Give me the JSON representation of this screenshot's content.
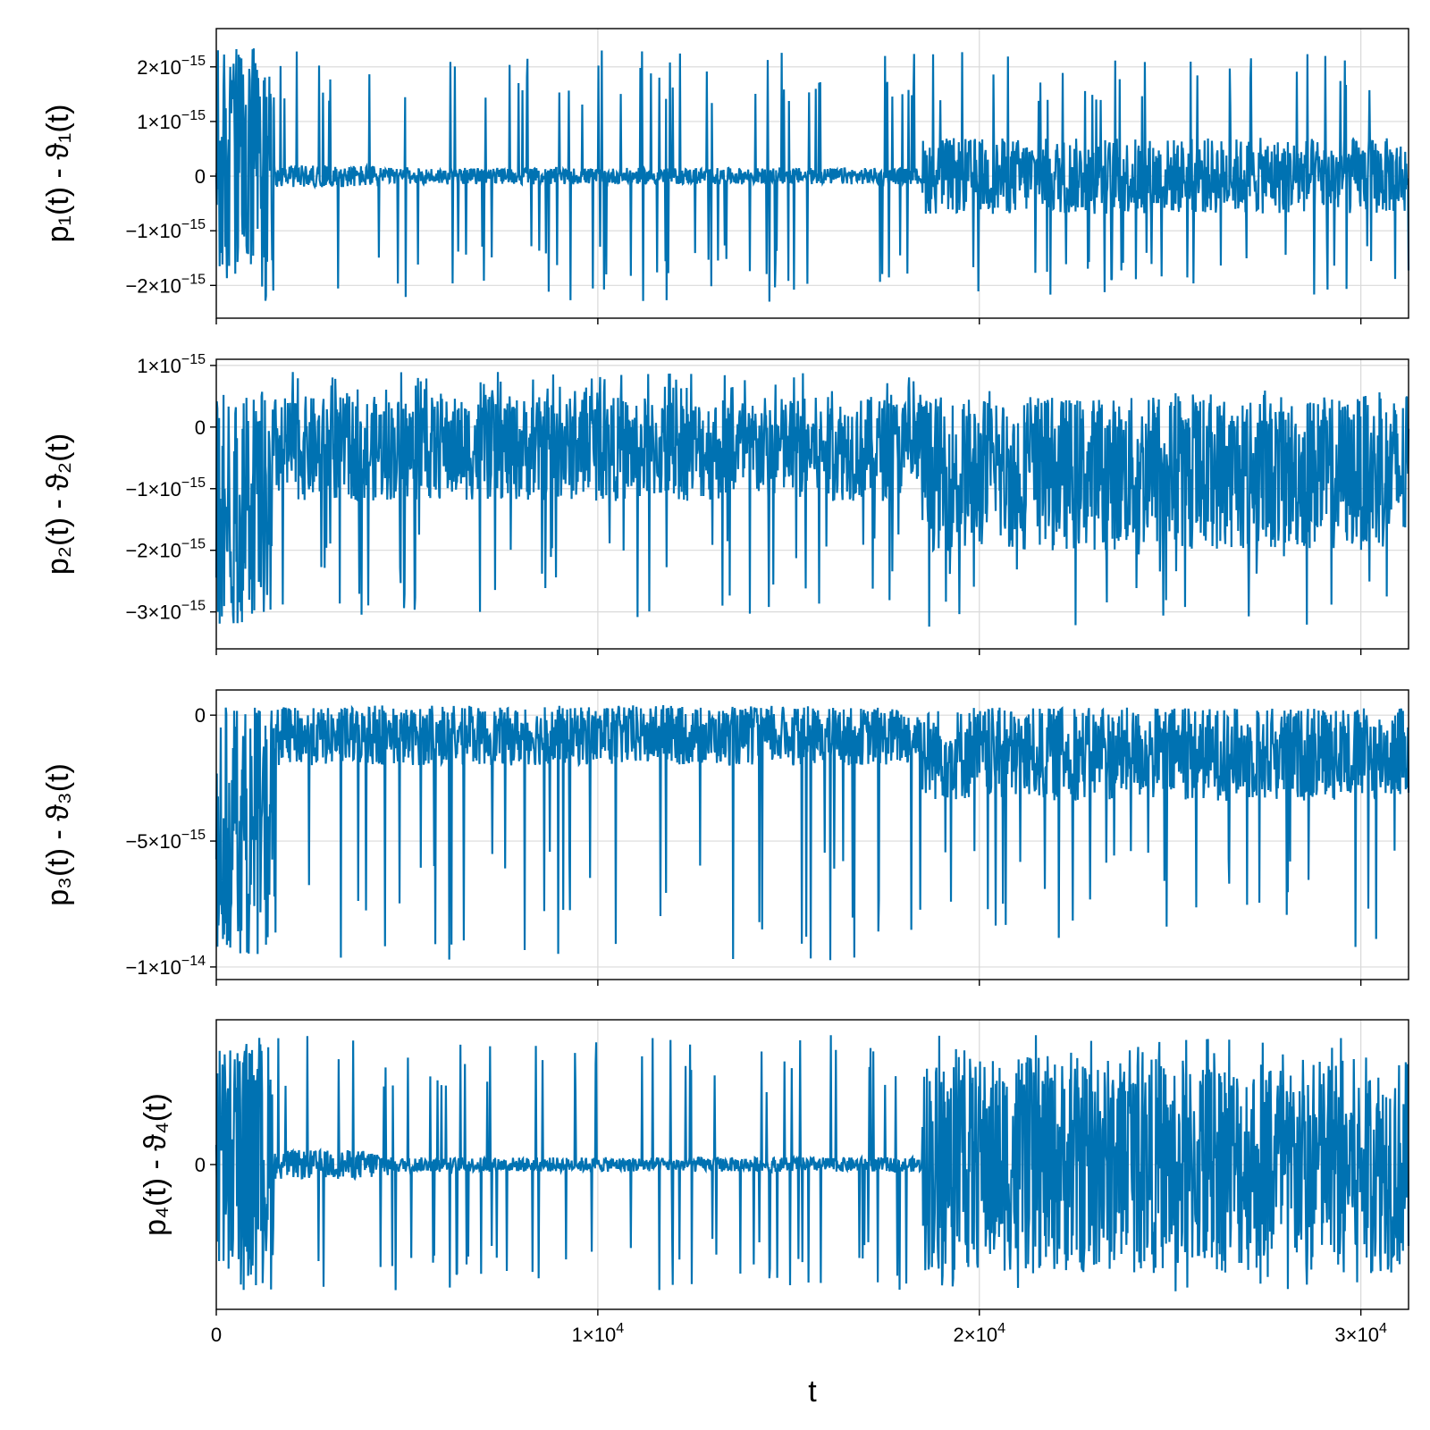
{
  "chart_data": [
    {
      "type": "line",
      "ylabel": "p₁(t) - ϑ₁(t)",
      "xlabel": "",
      "xlim": [
        0,
        31250
      ],
      "ylim": [
        -2.6e-15,
        2.7e-15
      ],
      "x_ticks": [
        {
          "value": 0,
          "label": ""
        },
        {
          "value": 10000,
          "label": ""
        },
        {
          "value": 20000,
          "label": ""
        },
        {
          "value": 30000,
          "label": ""
        }
      ],
      "y_ticks": [
        {
          "value": 2e-15,
          "mant": "2×10",
          "exp": "−15"
        },
        {
          "value": 1e-15,
          "mant": "1×10",
          "exp": "−15"
        },
        {
          "value": 0,
          "mant": "0",
          "exp": ""
        },
        {
          "value": -1e-15,
          "mant": "−1×10",
          "exp": "−15"
        },
        {
          "value": -2e-15,
          "mant": "−2×10",
          "exp": "−15"
        }
      ],
      "grid": true,
      "color": "#0072b2",
      "segments": [
        {
          "x": [
            0,
            1500
          ],
          "hi": 2.4e-15,
          "lo": -2.3e-15,
          "spike_hi": 2.4e-15,
          "spike_lo": -2.3e-15
        },
        {
          "x": [
            1500,
            4500
          ],
          "hi": 2e-16,
          "lo": -2e-16,
          "spike_hi": 2.4e-15,
          "spike_lo": -2.3e-15
        },
        {
          "x": [
            4500,
            18500
          ],
          "hi": 1.5e-16,
          "lo": -1.5e-16,
          "spike_hi": 2.3e-15,
          "spike_lo": -2.3e-15
        },
        {
          "x": [
            18500,
            31250
          ],
          "hi": 7e-16,
          "lo": -7e-16,
          "spike_hi": 2.3e-15,
          "spike_lo": -2.2e-15
        }
      ]
    },
    {
      "type": "line",
      "ylabel": "p₂(t) - ϑ₂(t)",
      "xlabel": "",
      "xlim": [
        0,
        31250
      ],
      "ylim": [
        -3.6e-15,
        1.1e-15
      ],
      "x_ticks": [
        {
          "value": 0,
          "label": ""
        },
        {
          "value": 10000,
          "label": ""
        },
        {
          "value": 20000,
          "label": ""
        },
        {
          "value": 30000,
          "label": ""
        }
      ],
      "y_ticks": [
        {
          "value": 1e-15,
          "mant": "1×10",
          "exp": "−15"
        },
        {
          "value": 0,
          "mant": "0",
          "exp": ""
        },
        {
          "value": -1e-15,
          "mant": "−1×10",
          "exp": "−15"
        },
        {
          "value": -2e-15,
          "mant": "−2×10",
          "exp": "−15"
        },
        {
          "value": -3e-15,
          "mant": "−3×10",
          "exp": "−15"
        }
      ],
      "grid": true,
      "color": "#0072b2",
      "segments": [
        {
          "x": [
            0,
            1500
          ],
          "hi": 5e-16,
          "lo": -3.2e-15,
          "spike_hi": 6e-16,
          "spike_lo": -3.2e-15
        },
        {
          "x": [
            1500,
            18500
          ],
          "hi": 5e-16,
          "lo": -1.2e-15,
          "spike_hi": 9e-16,
          "spike_lo": -3.1e-15
        },
        {
          "x": [
            18500,
            31250
          ],
          "hi": 5e-16,
          "lo": -2e-15,
          "spike_hi": 6e-16,
          "spike_lo": -3.3e-15
        }
      ]
    },
    {
      "type": "line",
      "ylabel": "p₃(t) - ϑ₃(t)",
      "xlabel": "",
      "xlim": [
        0,
        31250
      ],
      "ylim": [
        -1.05e-14,
        1e-15
      ],
      "x_ticks": [
        {
          "value": 0,
          "label": ""
        },
        {
          "value": 10000,
          "label": ""
        },
        {
          "value": 20000,
          "label": ""
        },
        {
          "value": 30000,
          "label": ""
        }
      ],
      "y_ticks": [
        {
          "value": 0,
          "mant": "0",
          "exp": ""
        },
        {
          "value": -5e-15,
          "mant": "−5×10",
          "exp": "−15"
        },
        {
          "value": -1e-14,
          "mant": "−1×10",
          "exp": "−14"
        }
      ],
      "grid": true,
      "color": "#0072b2",
      "segments": [
        {
          "x": [
            0,
            1500
          ],
          "hi": 2e-16,
          "lo": -9.5e-15,
          "spike_hi": 3e-16,
          "spike_lo": -9.9e-15
        },
        {
          "x": [
            1500,
            18500
          ],
          "hi": 3e-16,
          "lo": -2e-15,
          "spike_hi": 4e-16,
          "spike_lo": -9.8e-15
        },
        {
          "x": [
            18500,
            31250
          ],
          "hi": 3e-16,
          "lo": -3.4e-15,
          "spike_hi": 3e-16,
          "spike_lo": -9.5e-15
        }
      ]
    },
    {
      "type": "line",
      "ylabel": "p₄(t) - ϑ₄(t)",
      "xlabel": "t",
      "xlim": [
        0,
        31250
      ],
      "ylim": [
        -1.0,
        1.0
      ],
      "x_ticks": [
        {
          "value": 0,
          "label": "0",
          "mant": "0",
          "exp": ""
        },
        {
          "value": 10000,
          "label": "1×10⁴",
          "mant": "1×10",
          "exp": "4"
        },
        {
          "value": 20000,
          "label": "2×10⁴",
          "mant": "2×10",
          "exp": "4"
        },
        {
          "value": 30000,
          "label": "3×10⁴",
          "mant": "3×10",
          "exp": "4"
        }
      ],
      "y_ticks": [
        {
          "value": 0,
          "mant": "0",
          "exp": ""
        }
      ],
      "grid": true,
      "color": "#0072b2",
      "segments": [
        {
          "x": [
            0,
            1500
          ],
          "hi": 0.88,
          "lo": -0.88,
          "spike_hi": 0.9,
          "spike_lo": -0.9
        },
        {
          "x": [
            1500,
            4500
          ],
          "hi": 0.1,
          "lo": -0.1,
          "spike_hi": 0.9,
          "spike_lo": -0.88
        },
        {
          "x": [
            4500,
            18500
          ],
          "hi": 0.05,
          "lo": -0.05,
          "spike_hi": 0.9,
          "spike_lo": -0.88
        },
        {
          "x": [
            18500,
            31250
          ],
          "hi": 0.75,
          "lo": -0.75,
          "spike_hi": 0.9,
          "spike_lo": -0.88
        }
      ]
    }
  ]
}
